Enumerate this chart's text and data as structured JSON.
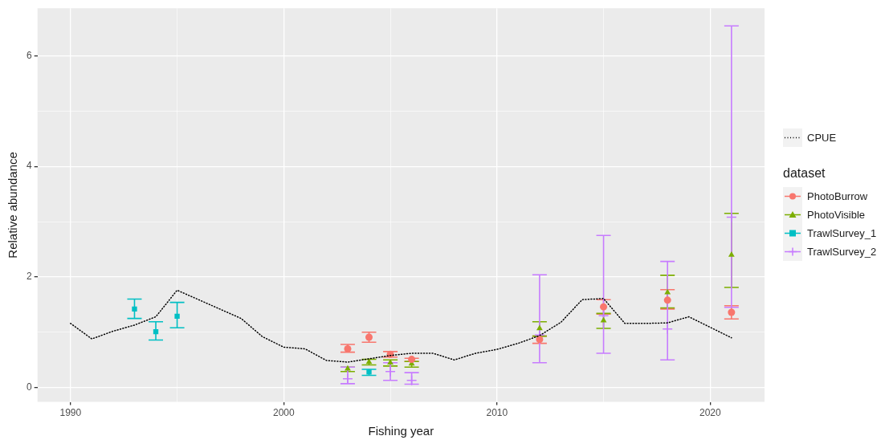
{
  "chart_data": {
    "type": "scatter",
    "xlabel": "Fishing year",
    "ylabel": "Relative abundance",
    "legend_title": "dataset",
    "legend": "right",
    "grid": true,
    "xlim": [
      1988.45,
      2022.55
    ],
    "xticks": [
      1990,
      {
        "value": 1995,
        "label": null
      },
      2000,
      {
        "value": 2005,
        "label": null
      },
      2010,
      {
        "value": 2015,
        "label": null
      },
      2020
    ],
    "ylim": [
      -0.26,
      6.86
    ],
    "yticks": [
      0,
      {
        "value": 1,
        "label": null
      },
      2,
      {
        "value": 3,
        "label": null
      },
      4,
      {
        "value": 5,
        "label": null
      },
      6
    ],
    "series": [
      {
        "name": "CPUE",
        "type": "line",
        "color": "#000000",
        "marker": "none",
        "line_style": "dotted",
        "x": [
          1990,
          1991,
          1992,
          1993,
          1994,
          1995,
          1996,
          1997,
          1998,
          1999,
          2000,
          2001,
          2002,
          2003,
          2004,
          2005,
          2006,
          2007,
          2008,
          2009,
          2010,
          2011,
          2012,
          2013,
          2014,
          2015,
          2016,
          2017,
          2018,
          2019,
          2020,
          2021
        ],
        "values": [
          1.16,
          0.88,
          1.02,
          1.13,
          1.28,
          1.76,
          1.59,
          1.42,
          1.25,
          0.92,
          0.73,
          0.7,
          0.49,
          0.46,
          0.52,
          0.58,
          0.62,
          0.62,
          0.5,
          0.62,
          0.69,
          0.8,
          0.94,
          1.18,
          1.59,
          1.61,
          1.16,
          1.16,
          1.17,
          1.28,
          1.09,
          0.9
        ]
      },
      {
        "name": "PhotoBurrow",
        "color": "#f8766d",
        "marker": "circle",
        "x": [
          2003,
          2004,
          2005,
          2006,
          2012,
          2015,
          2018,
          2021
        ],
        "values": [
          0.7,
          0.91,
          0.6,
          0.51,
          0.87,
          1.46,
          1.58,
          1.36
        ],
        "errors": [
          [
            0.64,
            0.78
          ],
          [
            0.82,
            1.0
          ],
          [
            0.55,
            0.65
          ],
          [
            0.47,
            0.53
          ],
          [
            0.8,
            0.93
          ],
          [
            1.33,
            1.59
          ],
          [
            1.42,
            1.77
          ],
          [
            1.24,
            1.48
          ]
        ]
      },
      {
        "name": "PhotoVisible",
        "color": "#7cae00",
        "marker": "triangle",
        "x": [
          2003,
          2004,
          2005,
          2006,
          2012,
          2015,
          2018,
          2021
        ],
        "values": [
          0.34,
          0.46,
          0.45,
          0.43,
          1.07,
          1.21,
          1.72,
          2.4
        ],
        "errors": [
          [
            0.29,
            0.37
          ],
          [
            0.41,
            0.51
          ],
          [
            0.39,
            0.5
          ],
          [
            0.37,
            0.47
          ],
          [
            0.93,
            1.19
          ],
          [
            1.07,
            1.34
          ],
          [
            1.44,
            2.03
          ],
          [
            1.81,
            3.15
          ]
        ]
      },
      {
        "name": "TrawlSurvey_1",
        "color": "#00bfc4",
        "marker": "square",
        "x": [
          1993,
          1994,
          1995,
          2004
        ],
        "values": [
          1.42,
          1.01,
          1.29,
          0.28
        ],
        "errors": [
          [
            1.25,
            1.6
          ],
          [
            0.86,
            1.19
          ],
          [
            1.08,
            1.54
          ],
          [
            0.22,
            0.33
          ]
        ]
      },
      {
        "name": "TrawlSurvey_2",
        "color": "#c77cff",
        "marker": "cross",
        "x": [
          2003,
          2005,
          2006,
          2012,
          2015,
          2018,
          2021
        ],
        "values": [
          0.16,
          0.29,
          0.13,
          0.95,
          1.3,
          1.06,
          3.08
        ],
        "errors": [
          [
            0.07,
            0.37
          ],
          [
            0.13,
            0.45
          ],
          [
            0.06,
            0.27
          ],
          [
            0.45,
            2.04
          ],
          [
            0.62,
            2.75
          ],
          [
            0.5,
            2.28
          ],
          [
            1.45,
            6.54
          ]
        ]
      }
    ]
  }
}
